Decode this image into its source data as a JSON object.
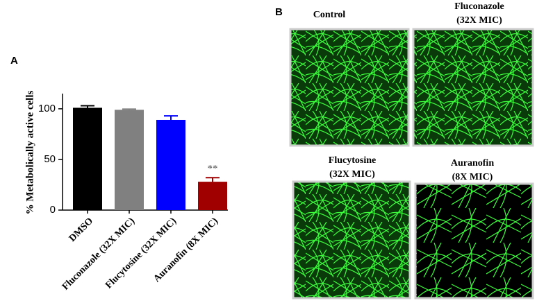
{
  "panel_labels": [
    "A",
    "B"
  ],
  "chart_data": {
    "type": "bar",
    "ylabel": "% Metabolically active cells",
    "categories": [
      "DMSO",
      "Fluconazole (32X MIC)",
      "Flucytosine (32X MIC)",
      "Auranofin (8X MIC)"
    ],
    "values": [
      101,
      99,
      89,
      28
    ],
    "errors": [
      2,
      0.7,
      4,
      4
    ],
    "colors": [
      "#000000",
      "#808080",
      "#0000ff",
      "#a00000"
    ],
    "ylim": [
      0,
      115
    ],
    "yticks": [
      0,
      50,
      100
    ],
    "annotations": [
      {
        "text": "**",
        "category": "Auranofin (8X MIC)"
      }
    ]
  },
  "images": [
    {
      "label": [
        "Control"
      ]
    },
    {
      "label": [
        "Fluconazole",
        "(32X MIC)"
      ]
    },
    {
      "label": [
        "Flucytosine",
        "(32X MIC)"
      ]
    },
    {
      "label": [
        "Auranofin",
        "(8X MIC)"
      ]
    }
  ]
}
